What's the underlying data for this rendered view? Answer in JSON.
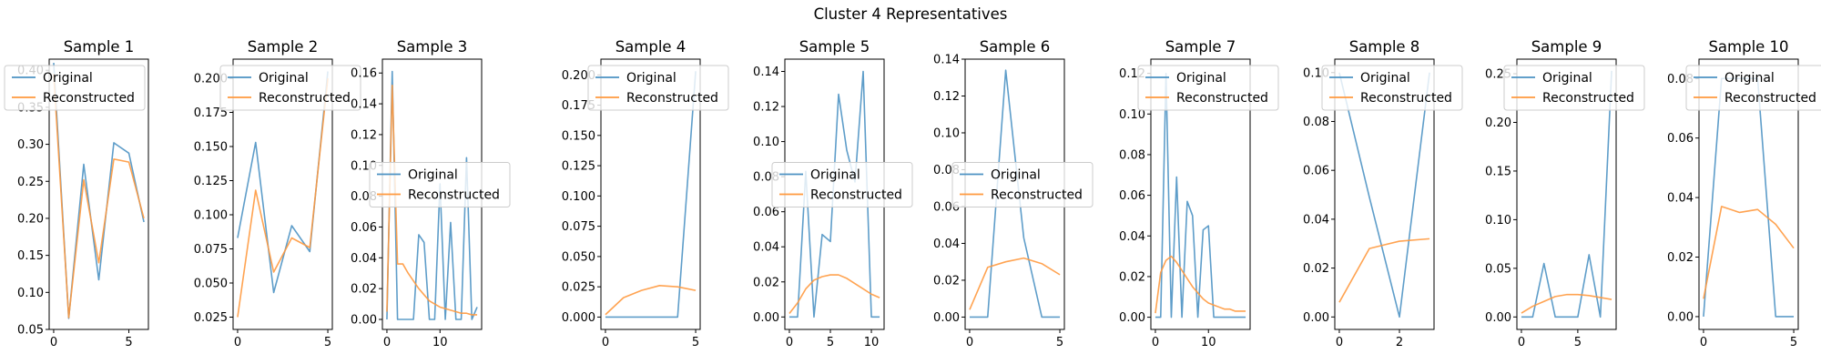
{
  "figure": {
    "suptitle": "Cluster 4 Representatives"
  },
  "colors": {
    "original": "#4c92c3",
    "reconstructed": "#ff993e"
  },
  "legend": {
    "original_label": "Original",
    "reconstructed_label": "Reconstructed"
  },
  "chart_data": [
    {
      "type": "line",
      "title": "Sample 1",
      "legend_loc": "upper-right",
      "xlim": [
        -0.3,
        6.3
      ],
      "ylim": [
        0.05,
        0.415
      ],
      "xticks": [
        0,
        5
      ],
      "yticks": [
        0.05,
        0.1,
        0.15,
        0.2,
        0.25,
        0.3,
        0.35,
        0.4
      ],
      "ytick_labels": [
        "0.05",
        "0.10",
        "0.15",
        "0.20",
        "0.25",
        "0.30",
        "0.35",
        "0.40"
      ],
      "series": [
        {
          "name": "Original",
          "x": [
            0,
            1,
            2,
            3,
            4,
            5,
            6
          ],
          "values": [
            0.41,
            0.065,
            0.273,
            0.117,
            0.302,
            0.288,
            0.195
          ]
        },
        {
          "name": "Reconstructed",
          "x": [
            0,
            1,
            2,
            3,
            4,
            5,
            6
          ],
          "values": [
            0.395,
            0.066,
            0.252,
            0.14,
            0.28,
            0.276,
            0.2
          ]
        }
      ]
    },
    {
      "type": "line",
      "title": "Sample 2",
      "legend_loc": "upper-left",
      "xlim": [
        -0.25,
        5.25
      ],
      "ylim": [
        0.016,
        0.214
      ],
      "xticks": [
        0,
        5
      ],
      "yticks": [
        0.025,
        0.05,
        0.075,
        0.1,
        0.125,
        0.15,
        0.175,
        0.2
      ],
      "ytick_labels": [
        "0.025",
        "0.050",
        "0.075",
        "0.100",
        "0.125",
        "0.150",
        "0.175",
        "0.200"
      ],
      "series": [
        {
          "name": "Original",
          "x": [
            0,
            1,
            2,
            3,
            4,
            5
          ],
          "values": [
            0.083,
            0.153,
            0.043,
            0.092,
            0.073,
            0.205
          ]
        },
        {
          "name": "Reconstructed",
          "x": [
            0,
            1,
            2,
            3,
            4,
            5
          ],
          "values": [
            0.025,
            0.118,
            0.058,
            0.083,
            0.076,
            0.2
          ]
        }
      ]
    },
    {
      "type": "line",
      "title": "Sample 3",
      "legend_loc": "center-left",
      "xlim": [
        -0.85,
        17.85
      ],
      "ylim": [
        -0.0065,
        0.169
      ],
      "xticks": [
        0,
        10
      ],
      "yticks": [
        0,
        0.02,
        0.04,
        0.06,
        0.08,
        0.1,
        0.12,
        0.14,
        0.16
      ],
      "ytick_labels": [
        "0.00",
        "0.02",
        "0.04",
        "0.06",
        "0.08",
        "0.10",
        "0.12",
        "0.14",
        "0.16"
      ],
      "series": [
        {
          "name": "Original",
          "x": [
            0,
            1,
            2,
            3,
            4,
            5,
            6,
            7,
            8,
            9,
            10,
            11,
            12,
            13,
            14,
            15,
            16,
            17
          ],
          "values": [
            0,
            0.161,
            0,
            0,
            0,
            0,
            0.055,
            0.05,
            0,
            0,
            0.088,
            0,
            0.063,
            0,
            0,
            0.105,
            0,
            0.008
          ]
        },
        {
          "name": "Reconstructed",
          "x": [
            0,
            1,
            2,
            3,
            4,
            5,
            6,
            7,
            8,
            9,
            10,
            11,
            12,
            13,
            14,
            15,
            16,
            17
          ],
          "values": [
            0.005,
            0.152,
            0.036,
            0.036,
            0.03,
            0.025,
            0.02,
            0.016,
            0.012,
            0.01,
            0.008,
            0.007,
            0.006,
            0.005,
            0.004,
            0.004,
            0.003,
            0.003
          ]
        }
      ]
    },
    {
      "type": "line",
      "title": "Sample 4",
      "legend_loc": "upper-left",
      "xlim": [
        -0.25,
        5.25
      ],
      "ylim": [
        -0.0102,
        0.213
      ],
      "xticks": [
        0,
        5
      ],
      "yticks": [
        0,
        0.025,
        0.05,
        0.075,
        0.1,
        0.125,
        0.15,
        0.175,
        0.2
      ],
      "ytick_labels": [
        "0.000",
        "0.025",
        "0.050",
        "0.075",
        "0.100",
        "0.125",
        "0.150",
        "0.175",
        "0.200"
      ],
      "series": [
        {
          "name": "Original",
          "x": [
            0,
            1,
            2,
            3,
            4,
            5
          ],
          "values": [
            0,
            0,
            0,
            0,
            0,
            0.203
          ]
        },
        {
          "name": "Reconstructed",
          "x": [
            0,
            1,
            2,
            3,
            4,
            5
          ],
          "values": [
            0.002,
            0.016,
            0.022,
            0.026,
            0.025,
            0.022
          ]
        }
      ]
    },
    {
      "type": "line",
      "title": "Sample 5",
      "legend_loc": "center-left",
      "xlim": [
        -0.55,
        11.55
      ],
      "ylim": [
        -0.0071,
        0.147
      ],
      "xticks": [
        0,
        5,
        10
      ],
      "yticks": [
        0,
        0.02,
        0.04,
        0.06,
        0.08,
        0.1,
        0.12,
        0.14
      ],
      "ytick_labels": [
        "0.00",
        "0.02",
        "0.04",
        "0.06",
        "0.08",
        "0.10",
        "0.12",
        "0.14"
      ],
      "series": [
        {
          "name": "Original",
          "x": [
            0,
            1,
            2,
            3,
            4,
            5,
            6,
            7,
            8,
            9,
            10,
            11
          ],
          "values": [
            0,
            0,
            0.083,
            0,
            0.047,
            0.043,
            0.127,
            0.095,
            0.077,
            0.14,
            0,
            0
          ]
        },
        {
          "name": "Reconstructed",
          "x": [
            0,
            1,
            2,
            3,
            4,
            5,
            6,
            7,
            8,
            9,
            10,
            11
          ],
          "values": [
            0.002,
            0.008,
            0.016,
            0.021,
            0.023,
            0.024,
            0.024,
            0.022,
            0.019,
            0.016,
            0.013,
            0.011
          ]
        }
      ]
    },
    {
      "type": "line",
      "title": "Sample 6",
      "legend_loc": "center-left",
      "xlim": [
        -0.25,
        5.25
      ],
      "ylim": [
        -0.0067,
        0.14
      ],
      "xticks": [
        0,
        5
      ],
      "yticks": [
        0,
        0.02,
        0.04,
        0.06,
        0.08,
        0.1,
        0.12,
        0.14
      ],
      "ytick_labels": [
        "0.00",
        "0.02",
        "0.04",
        "0.06",
        "0.08",
        "0.10",
        "0.12",
        "0.14"
      ],
      "series": [
        {
          "name": "Original",
          "x": [
            0,
            1,
            2,
            3,
            4,
            5
          ],
          "values": [
            0,
            0,
            0.134,
            0.043,
            0,
            0
          ]
        },
        {
          "name": "Reconstructed",
          "x": [
            0,
            1,
            2,
            3,
            4,
            5
          ],
          "values": [
            0.004,
            0.027,
            0.03,
            0.032,
            0.029,
            0.023
          ]
        }
      ]
    },
    {
      "type": "line",
      "title": "Sample 7",
      "legend_loc": "upper-left",
      "xlim": [
        -0.85,
        17.85
      ],
      "ylim": [
        -0.006,
        0.127
      ],
      "xticks": [
        0,
        10
      ],
      "yticks": [
        0,
        0.02,
        0.04,
        0.06,
        0.08,
        0.1,
        0.12
      ],
      "ytick_labels": [
        "0.00",
        "0.02",
        "0.04",
        "0.06",
        "0.08",
        "0.10",
        "0.12"
      ],
      "series": [
        {
          "name": "Original",
          "x": [
            0,
            1,
            2,
            3,
            4,
            5,
            6,
            7,
            8,
            9,
            10,
            11,
            12,
            13,
            14,
            15,
            16,
            17
          ],
          "values": [
            0,
            0,
            0.12,
            0,
            0.069,
            0,
            0.057,
            0.05,
            0,
            0.043,
            0.045,
            0,
            0,
            0,
            0,
            0,
            0,
            0
          ]
        },
        {
          "name": "Reconstructed",
          "x": [
            0,
            1,
            2,
            3,
            4,
            5,
            6,
            7,
            8,
            9,
            10,
            11,
            12,
            13,
            14,
            15,
            16,
            17
          ],
          "values": [
            0.002,
            0.022,
            0.028,
            0.03,
            0.027,
            0.023,
            0.019,
            0.015,
            0.012,
            0.009,
            0.007,
            0.006,
            0.005,
            0.004,
            0.004,
            0.003,
            0.003,
            0.003
          ]
        }
      ]
    },
    {
      "type": "line",
      "title": "Sample 8",
      "legend_loc": "upper-left",
      "xlim": [
        -0.15,
        3.15
      ],
      "ylim": [
        -0.0051,
        0.1055
      ],
      "xticks": [
        0,
        2
      ],
      "yticks": [
        0,
        0.02,
        0.04,
        0.06,
        0.08,
        0.1
      ],
      "ytick_labels": [
        "0.00",
        "0.02",
        "0.04",
        "0.06",
        "0.08",
        "0.10"
      ],
      "series": [
        {
          "name": "Original",
          "x": [
            0,
            1,
            2,
            3
          ],
          "values": [
            0.1,
            0.049,
            0,
            0.1
          ]
        },
        {
          "name": "Reconstructed",
          "x": [
            0,
            1,
            2,
            3
          ],
          "values": [
            0.006,
            0.028,
            0.031,
            0.032
          ]
        }
      ]
    },
    {
      "type": "line",
      "title": "Sample 9",
      "legend_loc": "upper-left",
      "xlim": [
        -0.4,
        8.4
      ],
      "ylim": [
        -0.0128,
        0.265
      ],
      "xticks": [
        0,
        5
      ],
      "yticks": [
        0,
        0.05,
        0.1,
        0.15,
        0.2,
        0.25
      ],
      "ytick_labels": [
        "0.00",
        "0.05",
        "0.10",
        "0.15",
        "0.20",
        "0.25"
      ],
      "series": [
        {
          "name": "Original",
          "x": [
            0,
            1,
            2,
            3,
            4,
            5,
            6,
            7,
            8
          ],
          "values": [
            0,
            0,
            0.055,
            0,
            0,
            0,
            0.064,
            0,
            0.253
          ]
        },
        {
          "name": "Reconstructed",
          "x": [
            0,
            1,
            2,
            3,
            4,
            5,
            6,
            7,
            8
          ],
          "values": [
            0.004,
            0.011,
            0.016,
            0.021,
            0.023,
            0.023,
            0.022,
            0.02,
            0.018
          ]
        }
      ]
    },
    {
      "type": "line",
      "title": "Sample 10",
      "legend_loc": "upper-left",
      "xlim": [
        -0.25,
        5.25
      ],
      "ylim": [
        -0.0043,
        0.0865
      ],
      "xticks": [
        0,
        5
      ],
      "yticks": [
        0,
        0.02,
        0.04,
        0.06,
        0.08
      ],
      "ytick_labels": [
        "0.00",
        "0.02",
        "0.04",
        "0.06",
        "0.08"
      ],
      "series": [
        {
          "name": "Original",
          "x": [
            0,
            1,
            2,
            3,
            4,
            5
          ],
          "values": [
            0,
            0.08,
            0.08,
            0.08,
            0,
            0
          ]
        },
        {
          "name": "Reconstructed",
          "x": [
            0,
            1,
            2,
            3,
            4,
            5
          ],
          "values": [
            0.006,
            0.037,
            0.035,
            0.036,
            0.031,
            0.023
          ]
        }
      ]
    }
  ]
}
